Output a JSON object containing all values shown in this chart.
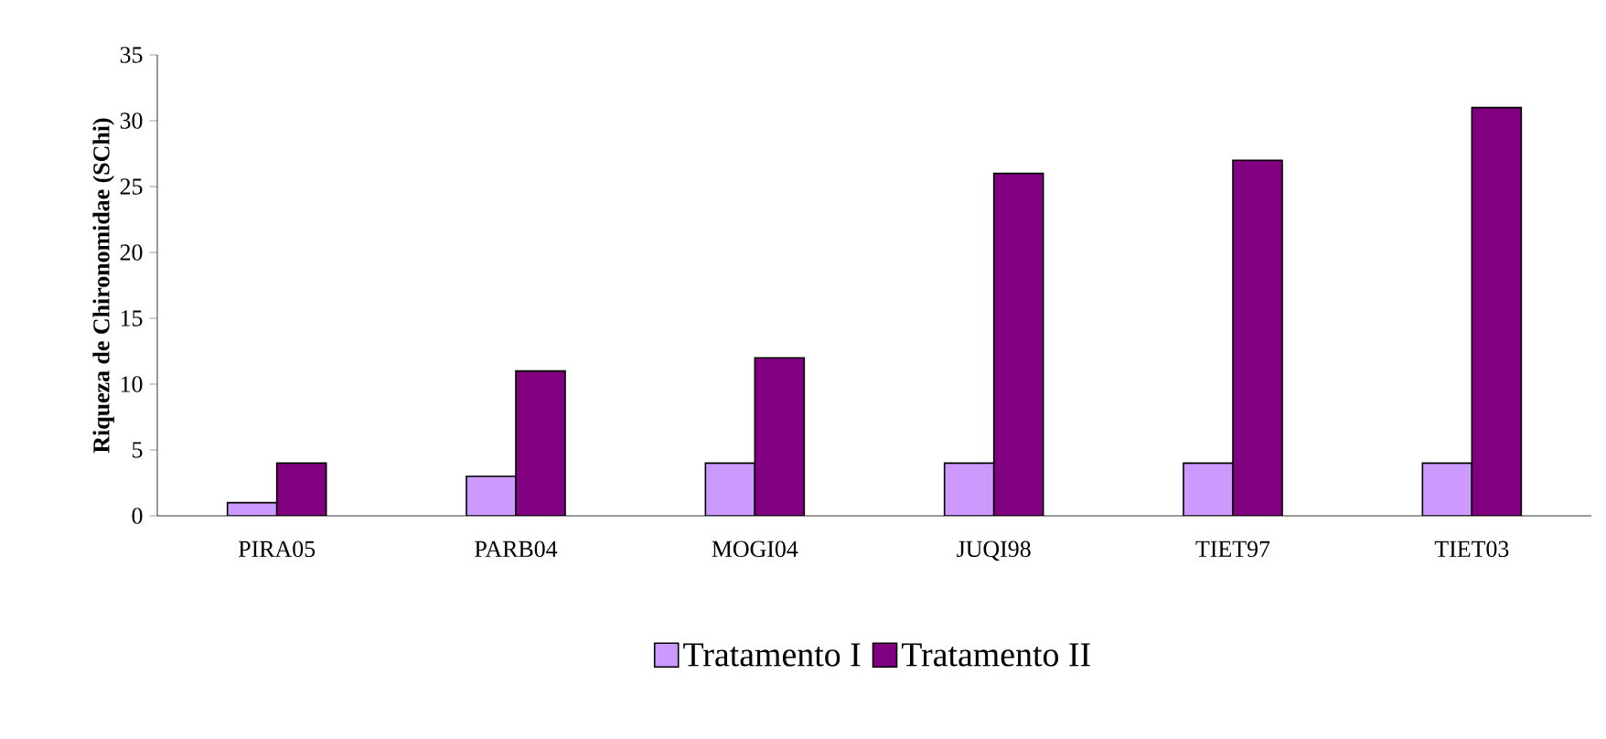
{
  "chart_data": {
    "type": "bar",
    "ylabel": "Riqueza de Chironomidae (SChi)",
    "categories": [
      "PIRA05",
      "PARB04",
      "MOGI04",
      "JUQI98",
      "TIET97",
      "TIET03"
    ],
    "series": [
      {
        "name": "Tratamento I",
        "color": "#cc99ff",
        "values": [
          1,
          3,
          4,
          4,
          4,
          4
        ]
      },
      {
        "name": "Tratamento II",
        "color": "#800080",
        "values": [
          4,
          11,
          12,
          26,
          27,
          31
        ]
      }
    ],
    "ylim": [
      0,
      35
    ],
    "yticks": [
      0,
      5,
      10,
      15,
      20,
      25,
      30,
      35
    ],
    "legend": "bottom",
    "grid": false
  }
}
